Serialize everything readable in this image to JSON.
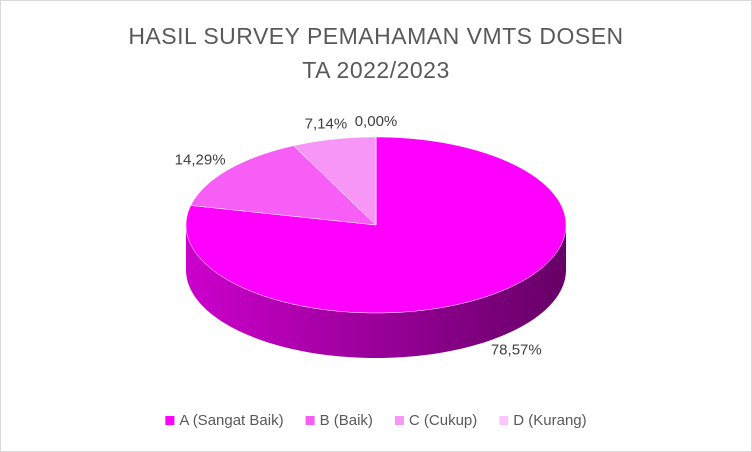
{
  "chart_data": {
    "type": "pie3d",
    "title": [
      "HASIL SURVEY PEMAHAMAN VMTS DOSEN",
      "TA 2022/2023"
    ],
    "series": [
      {
        "name": "A (Sangat Baik)",
        "color": "#ff00ff"
      },
      {
        "name": "B (Baik)",
        "color": "#f65ef6"
      },
      {
        "name": "C (Cukup)",
        "color": "#f796f7"
      },
      {
        "name": "D (Kurang)",
        "color": "#fbc6fb"
      }
    ],
    "values": [
      78.57,
      14.29,
      7.14,
      0.0
    ],
    "value_labels": [
      "78,57%",
      "14,29%",
      "7,14%",
      "0,00%"
    ],
    "legend": "bottom"
  }
}
